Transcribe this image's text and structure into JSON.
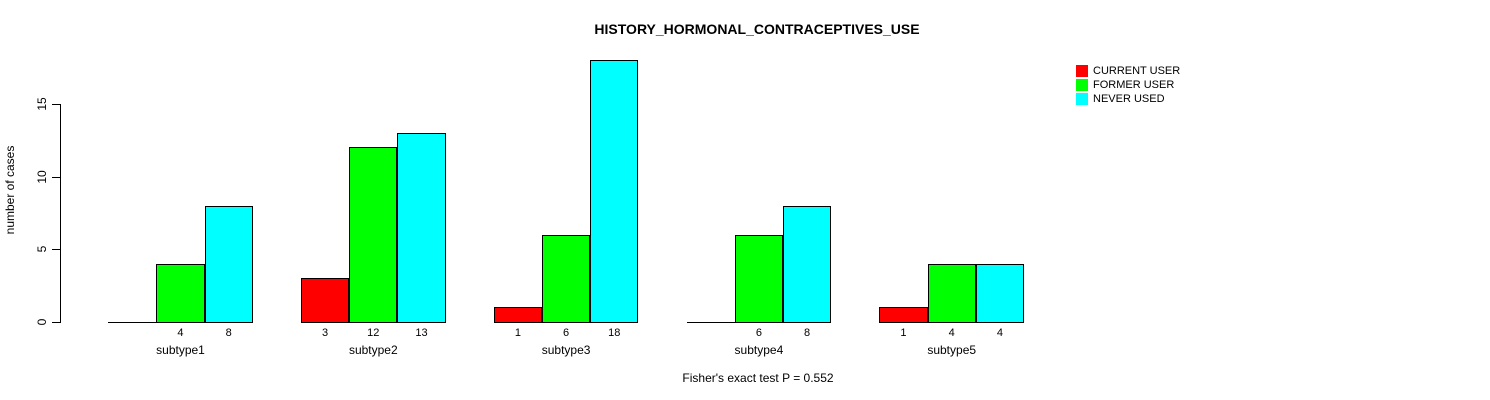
{
  "title": "HISTORY_HORMONAL_CONTRACEPTIVES_USE",
  "chart_data": {
    "type": "bar",
    "title": "HISTORY_HORMONAL_CONTRACEPTIVES_USE",
    "xlabel": "",
    "ylabel": "number of cases",
    "categories": [
      "subtype1",
      "subtype2",
      "subtype3",
      "subtype4",
      "subtype5"
    ],
    "series": [
      {
        "name": "CURRENT USER",
        "color": "#ff0000",
        "values": [
          0,
          3,
          1,
          0,
          1
        ]
      },
      {
        "name": "FORMER USER",
        "color": "#00ff00",
        "values": [
          4,
          12,
          6,
          6,
          4
        ]
      },
      {
        "name": "NEVER USED",
        "color": "#00ffff",
        "values": [
          8,
          13,
          18,
          8,
          4
        ]
      }
    ],
    "bar_value_labels": {
      "subtype1": [
        null,
        4,
        8
      ],
      "subtype2": [
        3,
        12,
        13
      ],
      "subtype3": [
        1,
        6,
        18
      ],
      "subtype4": [
        null,
        6,
        8
      ],
      "subtype5": [
        1,
        4,
        4
      ]
    },
    "yticks": [
      0,
      5,
      10,
      15
    ],
    "ylim": [
      0,
      18.7
    ],
    "grid": false,
    "legend_position": "topright",
    "annotation": "Fisher's exact test P = 0.552"
  },
  "colors": {
    "current_user": "#ff0000",
    "former_user": "#00ff00",
    "never_used": "#00ffff",
    "axis": "#000000",
    "background": "#ffffff"
  }
}
